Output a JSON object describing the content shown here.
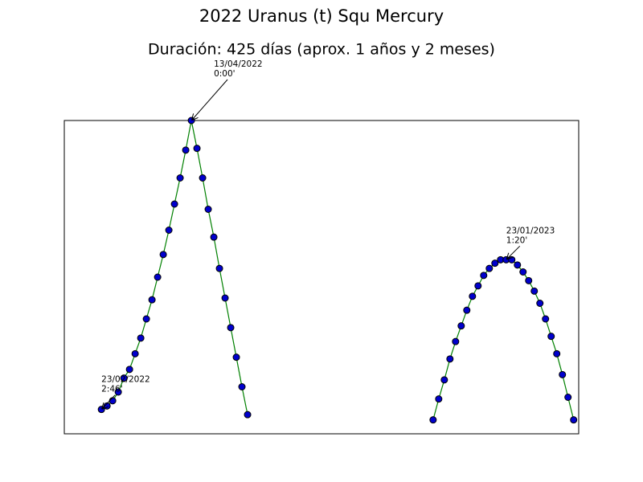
{
  "chart_data": {
    "type": "line",
    "title": "2022 Uranus (t) Squ Mercury",
    "subtitle": "Duración: 425 días (aprox. 1 años y 2 meses)",
    "xlim": [
      -6.6,
      84.9
    ],
    "ylim": [
      180,
      0
    ],
    "grid": false,
    "series": [
      {
        "color": "#008000",
        "marker_color": "#0000cc",
        "x": [
          0,
          1,
          2,
          3,
          4,
          5,
          6,
          7,
          8,
          9,
          10,
          11,
          12,
          13,
          14,
          15,
          16,
          17,
          18,
          19,
          20,
          21,
          22,
          23,
          24,
          25,
          26
        ],
        "values": [
          166,
          164,
          161,
          156,
          148,
          143,
          134,
          125,
          114,
          103,
          90,
          77,
          63,
          48,
          33,
          17,
          0,
          16,
          33,
          51,
          67,
          85,
          102,
          119,
          136,
          153,
          169
        ]
      },
      {
        "color": "#008000",
        "marker_color": "#0000cc",
        "x": [
          59,
          60,
          61,
          62,
          63,
          64,
          65,
          66,
          67,
          68,
          69,
          70,
          71,
          72,
          73,
          74,
          75,
          76,
          77,
          78,
          79,
          80,
          81,
          82,
          83,
          84
        ],
        "values": [
          172,
          160,
          149,
          137,
          127,
          118,
          109,
          101,
          95,
          89,
          85,
          82,
          80,
          80,
          80,
          83,
          87,
          92,
          98,
          105,
          114,
          124,
          134,
          146,
          159,
          172
        ]
      }
    ],
    "annotations": [
      {
        "lines": [
          "23/02/2022",
          "2:46'"
        ],
        "x": 0,
        "y": 166
      },
      {
        "lines": [
          "13/04/2022",
          "0:00'"
        ],
        "x": 16,
        "y": 0
      },
      {
        "lines": [
          "23/01/2023",
          "1:20'"
        ],
        "x": 72,
        "y": 80
      }
    ]
  }
}
